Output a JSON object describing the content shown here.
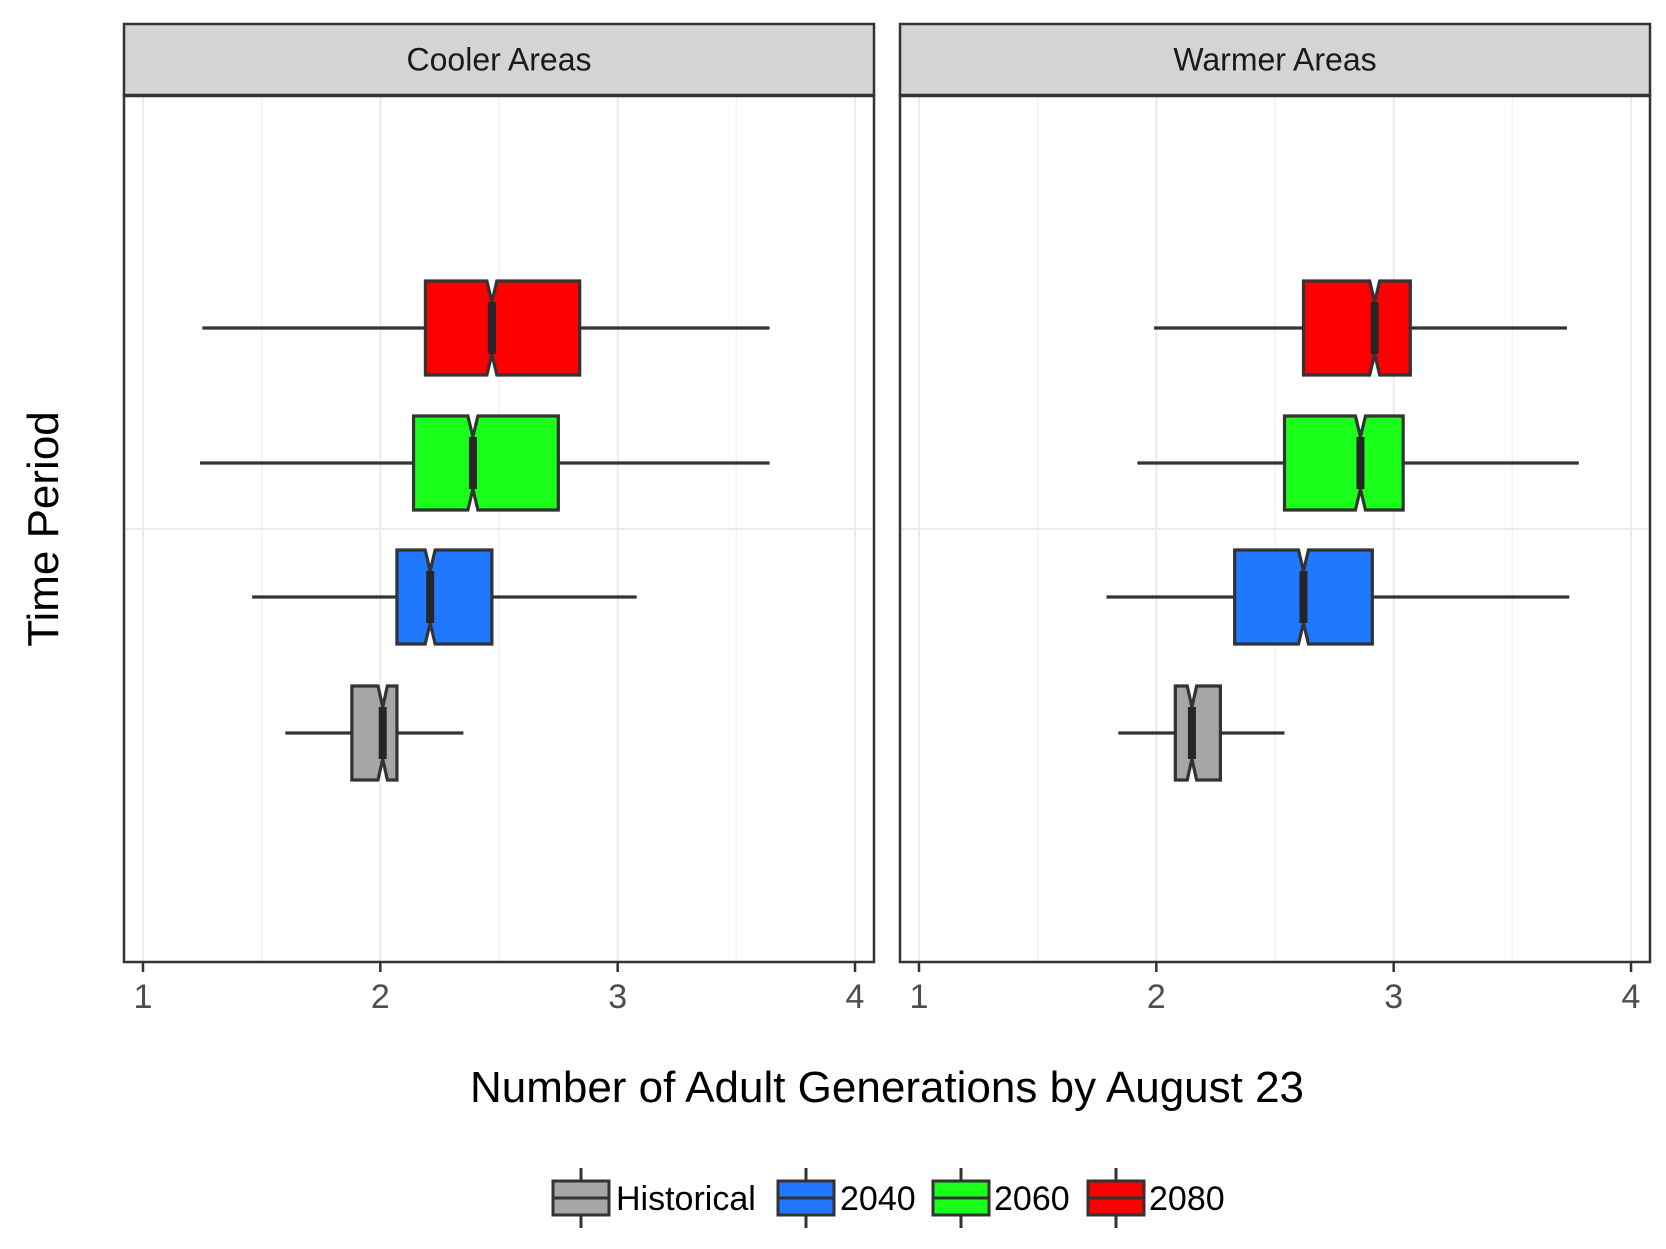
{
  "chart_data": {
    "type": "boxplot",
    "orientation": "horizontal",
    "notched": true,
    "xlabel": "Number of Adult Generations by August 23",
    "ylabel": "Time Period",
    "xlim": [
      0.92,
      4.08
    ],
    "x_ticks": [
      "1",
      "2",
      "3",
      "4"
    ],
    "grid": true,
    "legend_position": "bottom",
    "series_order": [
      "Historical",
      "2040",
      "2060",
      "2080"
    ],
    "colors": {
      "Historical": "#a6a6a6",
      "2040": "#1f78ff",
      "2060": "#19ff19",
      "2080": "#ff0000"
    },
    "panels": [
      {
        "title": "Cooler Areas",
        "boxes": [
          {
            "series": "Historical",
            "min": 1.6,
            "q1": 1.88,
            "median": 2.01,
            "q3": 2.07,
            "max": 2.35
          },
          {
            "series": "2040",
            "min": 1.46,
            "q1": 2.07,
            "median": 2.21,
            "q3": 2.47,
            "max": 3.08
          },
          {
            "series": "2060",
            "min": 1.24,
            "q1": 2.14,
            "median": 2.39,
            "q3": 2.75,
            "max": 3.64
          },
          {
            "series": "2080",
            "min": 1.25,
            "q1": 2.19,
            "median": 2.47,
            "q3": 2.84,
            "max": 3.64
          }
        ]
      },
      {
        "title": "Warmer Areas",
        "boxes": [
          {
            "series": "Historical",
            "min": 1.84,
            "q1": 2.08,
            "median": 2.15,
            "q3": 2.27,
            "max": 2.54
          },
          {
            "series": "2040",
            "min": 1.79,
            "q1": 2.33,
            "median": 2.62,
            "q3": 2.91,
            "max": 3.74
          },
          {
            "series": "2060",
            "min": 1.92,
            "q1": 2.54,
            "median": 2.86,
            "q3": 3.04,
            "max": 3.78
          },
          {
            "series": "2080",
            "min": 1.99,
            "q1": 2.62,
            "median": 2.92,
            "q3": 3.07,
            "max": 3.73
          }
        ]
      }
    ]
  },
  "legend": {
    "items": [
      {
        "label": "Historical"
      },
      {
        "label": "2040"
      },
      {
        "label": "2060"
      },
      {
        "label": "2080"
      }
    ]
  }
}
